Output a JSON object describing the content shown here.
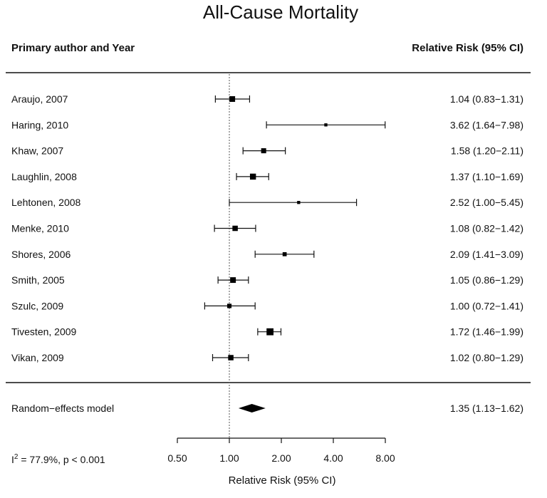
{
  "chart_data": {
    "type": "forest",
    "title": "All-Cause Mortality",
    "headers": {
      "left": "Primary author and Year",
      "right": "Relative Risk (95% CI)"
    },
    "xlabel": "Relative Risk (95% CI)",
    "x_scale": "log2",
    "xlim": [
      0.5,
      8.0
    ],
    "reference_line": 1.0,
    "ticks": [
      {
        "value": 0.5,
        "label": "0.50"
      },
      {
        "value": 1.0,
        "label": "1.00"
      },
      {
        "value": 2.0,
        "label": "2.00"
      },
      {
        "value": 4.0,
        "label": "4.00"
      },
      {
        "value": 8.0,
        "label": "8.00"
      }
    ],
    "studies": [
      {
        "label": "Araujo, 2007",
        "rr": 1.04,
        "lo": 0.83,
        "hi": 1.31,
        "text": "1.04 (0.83−1.31)",
        "weight": 0.55
      },
      {
        "label": "Haring, 2010",
        "rr": 3.62,
        "lo": 1.64,
        "hi": 7.98,
        "text": "3.62 (1.64−7.98)",
        "weight": 0.15
      },
      {
        "label": "Khaw, 2007",
        "rr": 1.58,
        "lo": 1.2,
        "hi": 2.11,
        "text": "1.58 (1.20−2.11)",
        "weight": 0.45
      },
      {
        "label": "Laughlin, 2008",
        "rr": 1.37,
        "lo": 1.1,
        "hi": 1.69,
        "text": "1.37 (1.10−1.69)",
        "weight": 0.6
      },
      {
        "label": "Lehtonen, 2008",
        "rr": 2.52,
        "lo": 1.0,
        "hi": 5.45,
        "text": "2.52 (1.00−5.45)",
        "weight": 0.15
      },
      {
        "label": "Menke, 2010",
        "rr": 1.08,
        "lo": 0.82,
        "hi": 1.42,
        "text": "1.08 (0.82−1.42)",
        "weight": 0.5
      },
      {
        "label": "Shores, 2006",
        "rr": 2.09,
        "lo": 1.41,
        "hi": 3.09,
        "text": "2.09 (1.41−3.09)",
        "weight": 0.3
      },
      {
        "label": "Smith, 2005",
        "rr": 1.05,
        "lo": 0.86,
        "hi": 1.29,
        "text": "1.05 (0.86−1.29)",
        "weight": 0.55
      },
      {
        "label": "Szulc, 2009",
        "rr": 1.0,
        "lo": 0.72,
        "hi": 1.41,
        "text": "1.00 (0.72−1.41)",
        "weight": 0.35
      },
      {
        "label": "Tivesten, 2009",
        "rr": 1.72,
        "lo": 1.46,
        "hi": 1.99,
        "text": "1.72 (1.46−1.99)",
        "weight": 0.75
      },
      {
        "label": "Vikan, 2009",
        "rr": 1.02,
        "lo": 0.8,
        "hi": 1.29,
        "text": "1.02 (0.80−1.29)",
        "weight": 0.5
      }
    ],
    "summary": {
      "label": "Random−effects model",
      "rr": 1.35,
      "lo": 1.13,
      "hi": 1.62,
      "text": "1.35 (1.13−1.62)"
    },
    "heterogeneity": {
      "prefix": "I",
      "sup": "2",
      "text": " = 77.9%, p < 0.001"
    },
    "colors": {
      "ink": "#111111",
      "marker": "#000000",
      "reference_line": "#555555"
    }
  }
}
